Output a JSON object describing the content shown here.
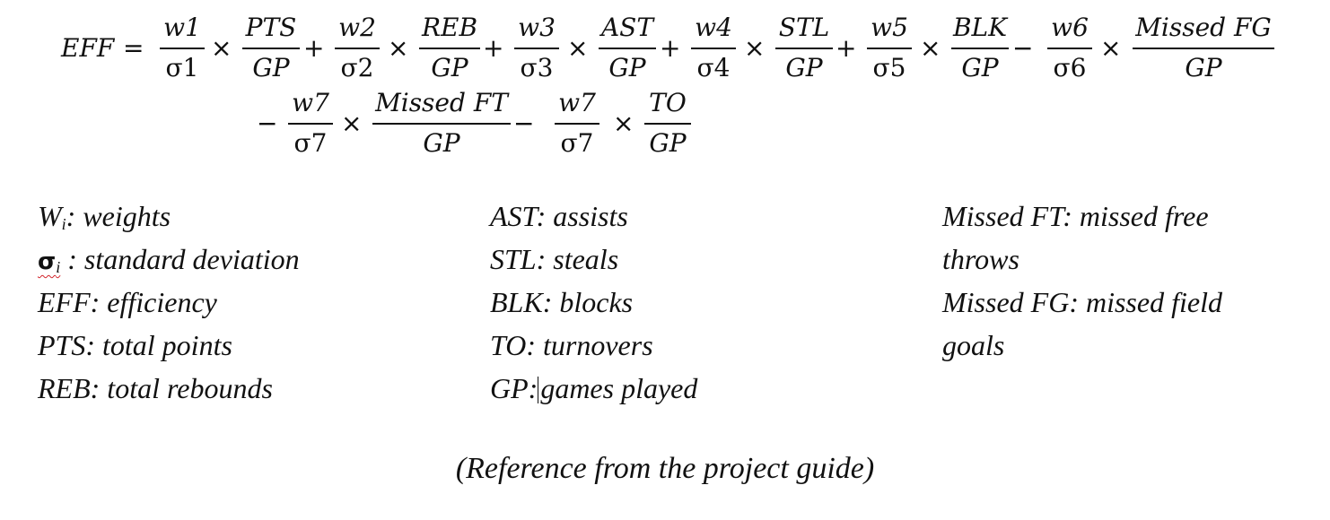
{
  "formula": {
    "lhs": "EFF",
    "equals": "=",
    "times": "×",
    "plus": "+",
    "minus": "−",
    "terms": [
      {
        "w": "w1",
        "s": "σ1",
        "num": "PTS",
        "den": "GP"
      },
      {
        "w": "w2",
        "s": "σ2",
        "num": "REB",
        "den": "GP"
      },
      {
        "w": "w3",
        "s": "σ3",
        "num": "AST",
        "den": "GP"
      },
      {
        "w": "w4",
        "s": "σ4",
        "num": "STL",
        "den": "GP"
      },
      {
        "w": "w5",
        "s": "σ5",
        "num": "BLK",
        "den": "GP"
      },
      {
        "w": "w6",
        "s": "σ6",
        "num": "Missed FG",
        "den": "GP"
      },
      {
        "w": "w7",
        "s": "σ7",
        "num": "Missed FT",
        "den": "GP"
      },
      {
        "w": "w7",
        "s": "σ7",
        "num": "TO",
        "den": "GP"
      }
    ]
  },
  "legend": {
    "col1": {
      "weights": {
        "sym": "W",
        "sub": "i",
        "text": ": weights"
      },
      "sigma": {
        "sym": "σ",
        "sub": "i",
        "text": " : standard deviation"
      },
      "eff": "EFF: efficiency",
      "pts": "PTS: total points",
      "reb": "REB: total rebounds"
    },
    "col2": {
      "ast": "AST: assists",
      "stl": "STL: steals",
      "blk": "BLK: blocks",
      "to": "TO: turnovers",
      "gp_key": "GP:",
      "gp_val": "games played"
    },
    "col3": {
      "missed_ft_1": "Missed FT: missed free",
      "missed_ft_2": "throws",
      "missed_fg_1": "Missed FG: missed field",
      "missed_fg_2": "goals"
    }
  },
  "caption": "(Reference from the project guide)"
}
